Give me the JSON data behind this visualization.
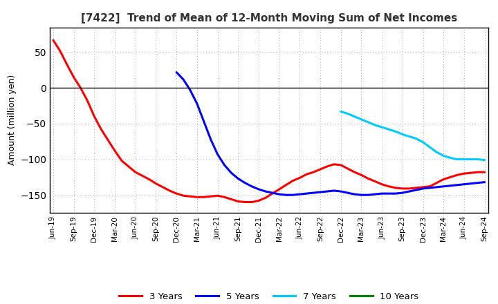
{
  "title": "[7422]  Trend of Mean of 12-Month Moving Sum of Net Incomes",
  "ylabel": "Amount (million yen)",
  "ylim": [
    -175,
    85
  ],
  "yticks": [
    -150,
    -100,
    -50,
    0,
    50
  ],
  "background_color": "#ffffff",
  "grid_color": "#aaaaaa",
  "series": {
    "3years": {
      "color": "#ff0000",
      "label": "3 Years",
      "x": [
        0,
        1,
        2,
        3,
        4,
        5,
        6,
        7,
        8,
        9,
        10,
        11,
        12,
        13,
        14,
        15,
        16,
        17,
        18,
        19,
        20,
        21,
        22,
        23,
        24,
        25,
        26,
        27,
        28,
        29,
        30,
        31,
        32,
        33,
        34,
        35,
        36,
        37,
        38,
        39,
        40,
        41,
        42,
        43,
        44,
        45,
        46,
        47,
        48,
        49,
        50,
        51,
        52,
        53,
        54,
        55,
        56,
        57,
        58,
        59,
        60,
        61,
        62,
        63
      ],
      "y": [
        67,
        52,
        33,
        15,
        0,
        -18,
        -40,
        -58,
        -73,
        -88,
        -102,
        -110,
        -118,
        -123,
        -128,
        -134,
        -139,
        -144,
        -148,
        -151,
        -152,
        -153,
        -153,
        -152,
        -151,
        -153,
        -156,
        -159,
        -160,
        -160,
        -158,
        -154,
        -148,
        -142,
        -136,
        -130,
        -126,
        -121,
        -118,
        -114,
        -110,
        -107,
        -108,
        -113,
        -118,
        -122,
        -127,
        -131,
        -135,
        -138,
        -140,
        -141,
        -141,
        -140,
        -139,
        -138,
        -133,
        -128,
        -125,
        -122,
        -120,
        -119,
        -118,
        -118
      ]
    },
    "5years": {
      "color": "#0000ff",
      "label": "5 Years",
      "x": [
        18,
        19,
        20,
        21,
        22,
        23,
        24,
        25,
        26,
        27,
        28,
        29,
        30,
        31,
        32,
        33,
        34,
        35,
        36,
        37,
        38,
        39,
        40,
        41,
        42,
        43,
        44,
        45,
        46,
        47,
        48,
        49,
        50,
        51,
        52,
        53,
        54,
        55,
        56,
        57,
        58,
        59,
        60,
        61,
        62,
        63
      ],
      "y": [
        22,
        12,
        -3,
        -22,
        -47,
        -72,
        -93,
        -108,
        -119,
        -127,
        -133,
        -138,
        -142,
        -145,
        -147,
        -149,
        -150,
        -150,
        -149,
        -148,
        -147,
        -146,
        -145,
        -144,
        -145,
        -147,
        -149,
        -150,
        -150,
        -149,
        -148,
        -148,
        -148,
        -147,
        -145,
        -143,
        -141,
        -140,
        -139,
        -138,
        -137,
        -136,
        -135,
        -134,
        -133,
        -132
      ]
    },
    "7years": {
      "color": "#00ccff",
      "label": "7 Years",
      "x": [
        42,
        43,
        44,
        45,
        46,
        47,
        48,
        49,
        50,
        51,
        52,
        53,
        54,
        55,
        56,
        57,
        58,
        59,
        60,
        61,
        62,
        63
      ],
      "y": [
        -33,
        -36,
        -40,
        -44,
        -48,
        -52,
        -55,
        -58,
        -61,
        -65,
        -68,
        -71,
        -76,
        -83,
        -90,
        -95,
        -98,
        -100,
        -100,
        -100,
        -100,
        -101
      ]
    },
    "10years": {
      "color": "#008800",
      "label": "10 Years",
      "x": [],
      "y": []
    }
  },
  "x_tick_labels": [
    "Jun-19",
    "Sep-19",
    "Dec-19",
    "Mar-20",
    "Jun-20",
    "Sep-20",
    "Dec-20",
    "Mar-21",
    "Jun-21",
    "Sep-21",
    "Dec-21",
    "Mar-22",
    "Jun-22",
    "Sep-22",
    "Dec-22",
    "Mar-23",
    "Jun-23",
    "Sep-23",
    "Dec-23",
    "Mar-24",
    "Jun-24",
    "Sep-24"
  ],
  "x_tick_positions": [
    0,
    3,
    6,
    9,
    12,
    15,
    18,
    21,
    24,
    27,
    30,
    33,
    36,
    39,
    42,
    45,
    48,
    51,
    54,
    57,
    60,
    63
  ],
  "linewidth": 2.2
}
